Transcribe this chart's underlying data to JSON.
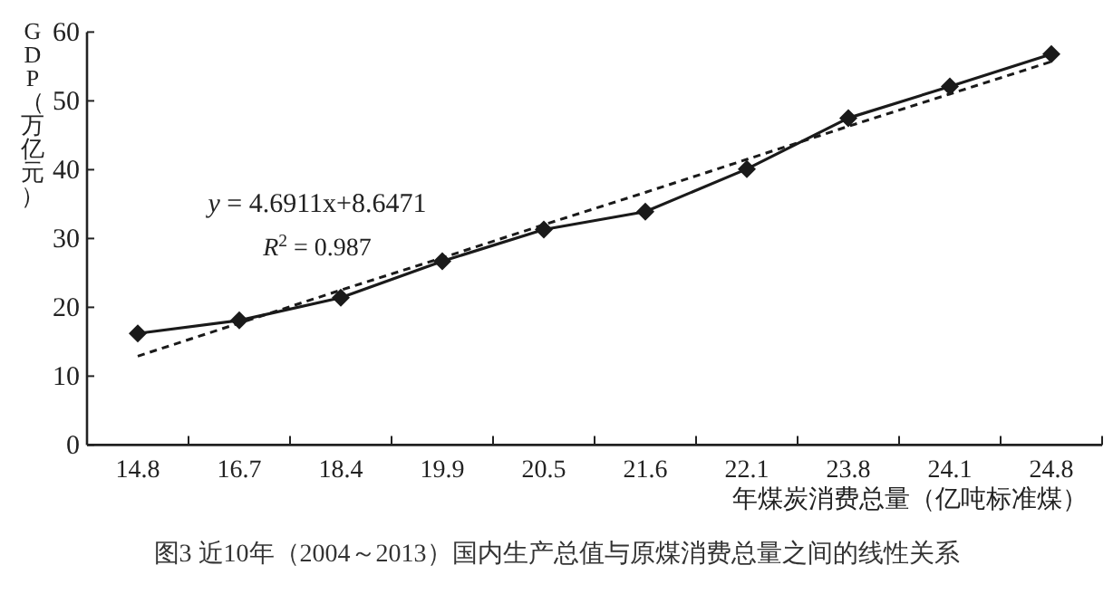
{
  "chart_data": {
    "type": "line",
    "xlabel": "年煤炭消费总量（亿吨标准煤）",
    "ylabel": "GDP（万亿元）",
    "categories": [
      "14.8",
      "16.7",
      "18.4",
      "19.9",
      "20.5",
      "21.6",
      "22.1",
      "23.8",
      "24.1",
      "24.8"
    ],
    "series": [
      {
        "color": "#1a1a1a",
        "marker": "diamond",
        "line_style": "solid",
        "values": [
          16.2,
          18.1,
          21.4,
          26.7,
          31.3,
          33.9,
          40.1,
          47.5,
          52.1,
          56.8
        ]
      },
      {
        "color": "#1a1a1a",
        "marker": "none",
        "line_style": "dashed",
        "values": [
          12.9,
          17.7,
          22.5,
          27.2,
          32.0,
          36.7,
          41.5,
          46.3,
          51.0,
          55.7
        ]
      }
    ],
    "ylim": [
      0,
      60
    ],
    "yticks": [
      0,
      10,
      20,
      30,
      40,
      50,
      60
    ],
    "grid": false,
    "annotations": [
      {
        "text": "*y* = 4.6911x+8.6471"
      },
      {
        "text": "*R*$^{2}$ = 0.987"
      },
      {
        "text": "图3 近10年（2004～2013）国内生产总值与原煤消费总量之间的线性关系"
      }
    ]
  }
}
